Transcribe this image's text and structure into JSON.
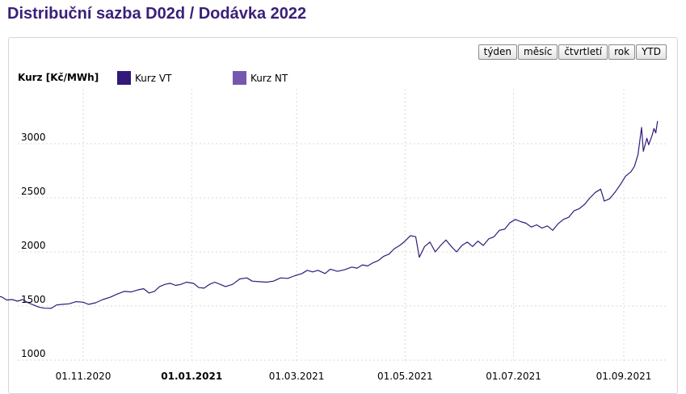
{
  "page": {
    "title": "Distribuční sazba D02d / Dodávka 2022"
  },
  "range_buttons": [
    {
      "id": "week",
      "label": "týden"
    },
    {
      "id": "month",
      "label": "měsíc"
    },
    {
      "id": "quarter",
      "label": "čtvrtletí"
    },
    {
      "id": "year",
      "label": "rok"
    },
    {
      "id": "ytd",
      "label": "YTD"
    }
  ],
  "colors": {
    "vt": "#33197a",
    "nt": "#7757ae",
    "grid": "#d9d9d9"
  },
  "chart_data": {
    "type": "line",
    "title": "",
    "ylabel": "Kurz [Kč/MWh]",
    "xlabel": "",
    "ylim": [
      1000,
      3300
    ],
    "xlim": [
      "2020-09-01",
      "2021-09-20"
    ],
    "grid": true,
    "legend": "top-left",
    "yticks": [
      1000,
      1500,
      2000,
      2500,
      3000
    ],
    "xticks": [
      {
        "date": "2020-11-01",
        "label": "01.11.2020",
        "bold": false
      },
      {
        "date": "2021-01-01",
        "label": "01.01.2021",
        "bold": true
      },
      {
        "date": "2021-03-01",
        "label": "01.03.2021",
        "bold": false
      },
      {
        "date": "2021-05-01",
        "label": "01.05.2021",
        "bold": false
      },
      {
        "date": "2021-07-01",
        "label": "01.07.2021",
        "bold": false
      },
      {
        "date": "2021-09-01",
        "label": "01.09.2021",
        "bold": false
      }
    ],
    "series": [
      {
        "name": "Kurz VT",
        "color": "#33197a",
        "points": [
          [
            "2020-09-01",
            1590
          ],
          [
            "2020-09-03",
            1582
          ],
          [
            "2020-09-06",
            1605
          ],
          [
            "2020-09-09",
            1570
          ],
          [
            "2020-09-12",
            1590
          ],
          [
            "2020-09-16",
            1585
          ],
          [
            "2020-09-19",
            1555
          ],
          [
            "2020-09-22",
            1560
          ],
          [
            "2020-09-25",
            1545
          ],
          [
            "2020-09-28",
            1560
          ],
          [
            "2020-10-01",
            1530
          ],
          [
            "2020-10-04",
            1510
          ],
          [
            "2020-10-07",
            1490
          ],
          [
            "2020-10-10",
            1480
          ],
          [
            "2020-10-14",
            1478
          ],
          [
            "2020-10-17",
            1510
          ],
          [
            "2020-10-20",
            1515
          ],
          [
            "2020-10-24",
            1520
          ],
          [
            "2020-10-28",
            1540
          ],
          [
            "2020-11-01",
            1535
          ],
          [
            "2020-11-04",
            1515
          ],
          [
            "2020-11-08",
            1530
          ],
          [
            "2020-11-12",
            1560
          ],
          [
            "2020-11-16",
            1580
          ],
          [
            "2020-11-20",
            1610
          ],
          [
            "2020-11-24",
            1635
          ],
          [
            "2020-11-28",
            1630
          ],
          [
            "2020-12-02",
            1650
          ],
          [
            "2020-12-05",
            1660
          ],
          [
            "2020-12-08",
            1620
          ],
          [
            "2020-12-11",
            1635
          ],
          [
            "2020-12-14",
            1680
          ],
          [
            "2020-12-17",
            1700
          ],
          [
            "2020-12-20",
            1710
          ],
          [
            "2020-12-23",
            1690
          ],
          [
            "2020-12-26",
            1700
          ],
          [
            "2020-12-29",
            1720
          ],
          [
            "2021-01-02",
            1710
          ],
          [
            "2021-01-05",
            1670
          ],
          [
            "2021-01-08",
            1665
          ],
          [
            "2021-01-11",
            1700
          ],
          [
            "2021-01-14",
            1720
          ],
          [
            "2021-01-17",
            1700
          ],
          [
            "2021-01-20",
            1680
          ],
          [
            "2021-01-24",
            1700
          ],
          [
            "2021-01-28",
            1750
          ],
          [
            "2021-02-01",
            1760
          ],
          [
            "2021-02-04",
            1730
          ],
          [
            "2021-02-08",
            1725
          ],
          [
            "2021-02-12",
            1720
          ],
          [
            "2021-02-16",
            1730
          ],
          [
            "2021-02-20",
            1760
          ],
          [
            "2021-02-24",
            1755
          ],
          [
            "2021-02-28",
            1780
          ],
          [
            "2021-03-04",
            1800
          ],
          [
            "2021-03-07",
            1830
          ],
          [
            "2021-03-10",
            1815
          ],
          [
            "2021-03-13",
            1830
          ],
          [
            "2021-03-17",
            1800
          ],
          [
            "2021-03-20",
            1840
          ],
          [
            "2021-03-24",
            1820
          ],
          [
            "2021-03-28",
            1835
          ],
          [
            "2021-04-01",
            1860
          ],
          [
            "2021-04-04",
            1850
          ],
          [
            "2021-04-07",
            1880
          ],
          [
            "2021-04-10",
            1870
          ],
          [
            "2021-04-13",
            1900
          ],
          [
            "2021-04-16",
            1920
          ],
          [
            "2021-04-19",
            1960
          ],
          [
            "2021-04-22",
            1980
          ],
          [
            "2021-04-25",
            2030
          ],
          [
            "2021-04-28",
            2060
          ],
          [
            "2021-05-01",
            2100
          ],
          [
            "2021-05-04",
            2150
          ],
          [
            "2021-05-07",
            2140
          ],
          [
            "2021-05-09",
            1950
          ],
          [
            "2021-05-12",
            2050
          ],
          [
            "2021-05-15",
            2090
          ],
          [
            "2021-05-18",
            2000
          ],
          [
            "2021-05-21",
            2060
          ],
          [
            "2021-05-24",
            2110
          ],
          [
            "2021-05-27",
            2050
          ],
          [
            "2021-05-30",
            2000
          ],
          [
            "2021-06-02",
            2060
          ],
          [
            "2021-06-05",
            2090
          ],
          [
            "2021-06-08",
            2050
          ],
          [
            "2021-06-11",
            2100
          ],
          [
            "2021-06-14",
            2060
          ],
          [
            "2021-06-17",
            2120
          ],
          [
            "2021-06-20",
            2140
          ],
          [
            "2021-06-23",
            2200
          ],
          [
            "2021-06-26",
            2210
          ],
          [
            "2021-06-29",
            2270
          ],
          [
            "2021-07-02",
            2300
          ],
          [
            "2021-07-05",
            2280
          ],
          [
            "2021-07-08",
            2265
          ],
          [
            "2021-07-11",
            2230
          ],
          [
            "2021-07-14",
            2250
          ],
          [
            "2021-07-17",
            2220
          ],
          [
            "2021-07-20",
            2240
          ],
          [
            "2021-07-23",
            2200
          ],
          [
            "2021-07-26",
            2260
          ],
          [
            "2021-07-29",
            2300
          ],
          [
            "2021-08-01",
            2320
          ],
          [
            "2021-08-04",
            2380
          ],
          [
            "2021-08-07",
            2400
          ],
          [
            "2021-08-10",
            2440
          ],
          [
            "2021-08-13",
            2500
          ],
          [
            "2021-08-16",
            2550
          ],
          [
            "2021-08-19",
            2580
          ],
          [
            "2021-08-21",
            2470
          ],
          [
            "2021-08-24",
            2490
          ],
          [
            "2021-08-27",
            2550
          ],
          [
            "2021-08-30",
            2620
          ],
          [
            "2021-09-02",
            2700
          ],
          [
            "2021-09-05",
            2740
          ],
          [
            "2021-09-07",
            2790
          ],
          [
            "2021-09-09",
            2900
          ],
          [
            "2021-09-11",
            3150
          ],
          [
            "2021-09-12",
            2930
          ],
          [
            "2021-09-14",
            3050
          ],
          [
            "2021-09-15",
            2990
          ],
          [
            "2021-09-17",
            3080
          ],
          [
            "2021-09-18",
            3140
          ],
          [
            "2021-09-19",
            3100
          ],
          [
            "2021-09-20",
            3210
          ]
        ]
      },
      {
        "name": "Kurz NT",
        "color": "#7757ae",
        "points": []
      }
    ]
  }
}
